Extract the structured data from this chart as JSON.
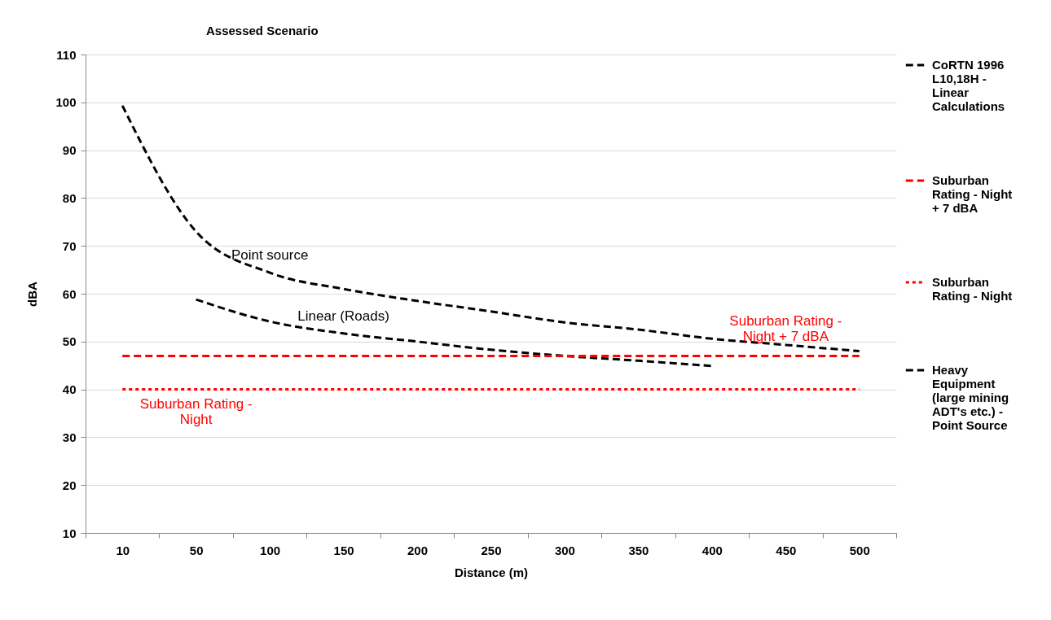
{
  "chart_data": {
    "type": "line",
    "title": "Assessed Scenario",
    "xlabel": "Distance (m)",
    "ylabel": "dBA",
    "categories": [
      "10",
      "50",
      "100",
      "150",
      "200",
      "250",
      "300",
      "350",
      "400",
      "450",
      "500"
    ],
    "series": [
      {
        "name": "CoRTN 1996 L10,18H - Linear Calculations",
        "color": "#000000",
        "line_style": "dashed",
        "values": [
          null,
          58.8,
          54.2,
          51.7,
          50,
          48.3,
          47,
          46,
          44.9,
          null,
          null
        ]
      },
      {
        "name": "Suburban Rating - Night + 7 dBA",
        "color": "#ff0000",
        "line_style": "dashed",
        "values": [
          47,
          47,
          47,
          47,
          47,
          47,
          47,
          47,
          47,
          47,
          47
        ]
      },
      {
        "name": "Suburban Rating - Night",
        "color": "#ff0000",
        "line_style": "dotted",
        "values": [
          40,
          40,
          40,
          40,
          40,
          40,
          40,
          40,
          40,
          40,
          40
        ]
      },
      {
        "name": "Heavy Equipment (large mining ADT's etc.) - Point Source",
        "color": "#000000",
        "line_style": "dashed",
        "values": [
          99.3,
          73,
          64.4,
          61,
          58.5,
          56.3,
          54,
          52.5,
          50.6,
          49.3,
          48
        ]
      }
    ],
    "ylim": [
      10,
      110
    ],
    "yticks": [
      10,
      20,
      30,
      40,
      50,
      60,
      70,
      80,
      90,
      100,
      110
    ],
    "grid": "y",
    "legend": "right",
    "marker": "none",
    "annotations": [
      {
        "text": "Point source",
        "x": "100",
        "y": 64.4
      },
      {
        "text": "Linear (Roads)",
        "x": "150",
        "y": 51.7
      },
      {
        "text": "Suburban  Rating - Night + 7 dBA",
        "x": "450",
        "y": 47
      },
      {
        "text": "Suburban  Rating - Night",
        "x": "50",
        "y": 40
      }
    ]
  }
}
